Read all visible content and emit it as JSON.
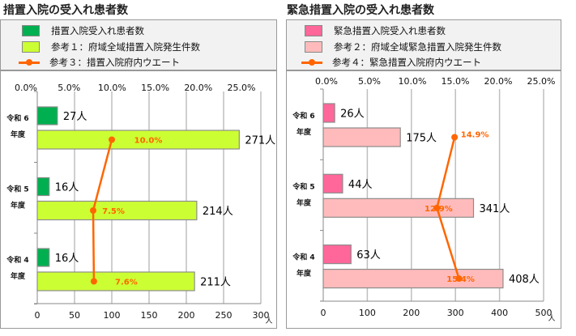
{
  "chart_data": [
    {
      "type": "bar",
      "orientation": "horizontal",
      "title": "措置入院の受入れ患者数",
      "categories": [
        {
          "line1": "令和 6",
          "line2": "年度"
        },
        {
          "line1": "令和 5",
          "line2": "年度"
        },
        {
          "line1": "令和 4",
          "line2": "年度"
        }
      ],
      "series": [
        {
          "name": "措置入院受入れ患者数",
          "kind": "bar",
          "color": "#00b050",
          "values": [
            27,
            16,
            16
          ],
          "labels": [
            "27人",
            "16人",
            "16人"
          ]
        },
        {
          "name": "参考１：府域全域措置入院発生件数",
          "kind": "bar",
          "color": "#ccff33",
          "values": [
            271,
            214,
            211
          ],
          "labels": [
            "271人",
            "214人",
            "211人"
          ]
        },
        {
          "name": "参考３：措置入院府内ウエート",
          "kind": "line",
          "color": "#ff6600",
          "values": [
            10.0,
            7.5,
            7.6
          ],
          "labels": [
            "10.0%",
            "7.5%",
            "7.6%"
          ],
          "axis": "top"
        }
      ],
      "x_axis": {
        "range": [
          0,
          300
        ],
        "ticks": [
          "0",
          "50",
          "100",
          "150",
          "200",
          "250",
          "300"
        ],
        "unit": "人"
      },
      "top_axis": {
        "range": [
          0,
          30
        ],
        "ticks": [
          "0.0%",
          "5.0%",
          "10.0%",
          "15.0%",
          "20.0%",
          "25.0%"
        ]
      },
      "grid": true,
      "legend_placement": "top"
    },
    {
      "type": "bar",
      "orientation": "horizontal",
      "title": "緊急措置入院の受入れ患者数",
      "categories": [
        {
          "line1": "令和 6",
          "line2": "年度"
        },
        {
          "line1": "令和 5",
          "line2": "年度"
        },
        {
          "line1": "令和 4",
          "line2": "年度"
        }
      ],
      "series": [
        {
          "name": "緊急措置入院受入れ患者数",
          "kind": "bar",
          "color": "#ff6699",
          "values": [
            26,
            44,
            63
          ],
          "labels": [
            "26人",
            "44人",
            "63人"
          ]
        },
        {
          "name": "参考２：府域全域緊急措置入院発生件数",
          "kind": "bar",
          "color": "#ffbbbb",
          "values": [
            175,
            341,
            408
          ],
          "labels": [
            "175人",
            "341人",
            "408人"
          ]
        },
        {
          "name": "参考４：緊急措置入院府内ウエート",
          "kind": "line",
          "color": "#ff6600",
          "values": [
            14.9,
            12.9,
            15.4
          ],
          "labels": [
            "14.9%",
            "12.9%",
            "15.4%"
          ],
          "axis": "top"
        }
      ],
      "x_axis": {
        "range": [
          0,
          500
        ],
        "ticks": [
          "0",
          "100",
          "200",
          "300",
          "400",
          "500"
        ],
        "unit": "人"
      },
      "top_axis": {
        "range": [
          0,
          25
        ],
        "ticks": [
          "0.0%",
          "5.0%",
          "10.0%",
          "15.0%",
          "20.0%",
          "25.0%"
        ]
      },
      "grid": true,
      "legend_placement": "top"
    }
  ]
}
